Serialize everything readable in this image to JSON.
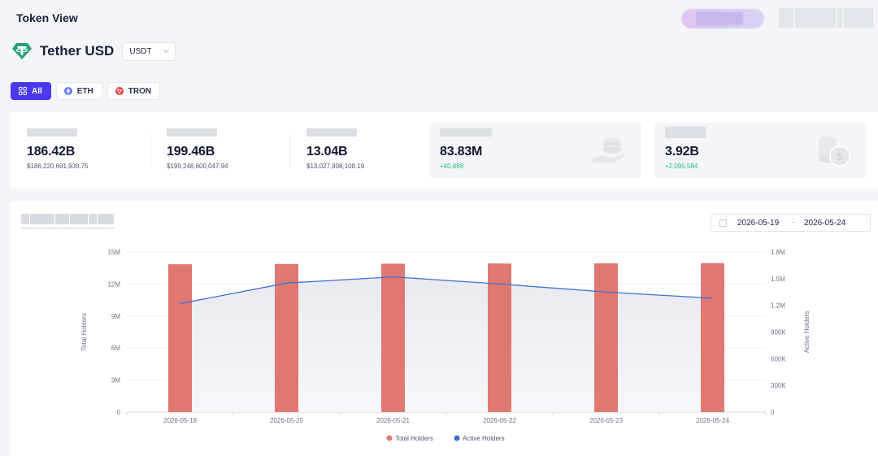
{
  "header": {
    "title": "Token View"
  },
  "token": {
    "name": "Tether USD",
    "symbol_select": "USDT",
    "logo_color": "#26a17b"
  },
  "chain_tabs": [
    {
      "label": "All",
      "active": true
    },
    {
      "label": "ETH",
      "active": false
    },
    {
      "label": "TRON",
      "active": false
    }
  ],
  "stats": [
    {
      "value": "186.42B",
      "sub": "$186,220,691,939.75"
    },
    {
      "value": "199.46B",
      "sub": "$199,248,600,047.94"
    },
    {
      "value": "13.04B",
      "sub": "$13,027,908,108.19"
    },
    {
      "value": "83.83M",
      "sub": "+40,888"
    },
    {
      "value": "3.92B",
      "sub": "+2,090,584"
    }
  ],
  "date_range": {
    "start": "2026-05-19",
    "separator": "~",
    "end": "2026-05-24"
  },
  "colors": {
    "accent": "#4b39ef",
    "bar": "#e07872",
    "line": "#3f6fd1",
    "positive": "#22c27a"
  },
  "chart_data": {
    "type": "bar",
    "categories": [
      "2026-05-19",
      "2026-05-20",
      "2026-05-21",
      "2026-05-22",
      "2026-05-23",
      "2026-05-24"
    ],
    "series": [
      {
        "name": "Total Holders",
        "type": "bar",
        "axis": "left",
        "values": [
          13850000,
          13880000,
          13900000,
          13920000,
          13940000,
          13960000
        ]
      },
      {
        "name": "Active Holders",
        "type": "line",
        "axis": "right",
        "values": [
          1220000,
          1450000,
          1520000,
          1440000,
          1350000,
          1280000
        ]
      }
    ],
    "ylabel": "Total Holders",
    "y2label": "Active Holders",
    "ylim": [
      0,
      15000000
    ],
    "y2lim": [
      0,
      1800000
    ],
    "yticks": [
      "0",
      "3M",
      "6M",
      "9M",
      "12M",
      "15M"
    ],
    "y2ticks": [
      "0",
      "300K",
      "600K",
      "900K",
      "1.2M",
      "1.5M",
      "1.8M"
    ],
    "grid": true,
    "legend": "bottom-center"
  }
}
